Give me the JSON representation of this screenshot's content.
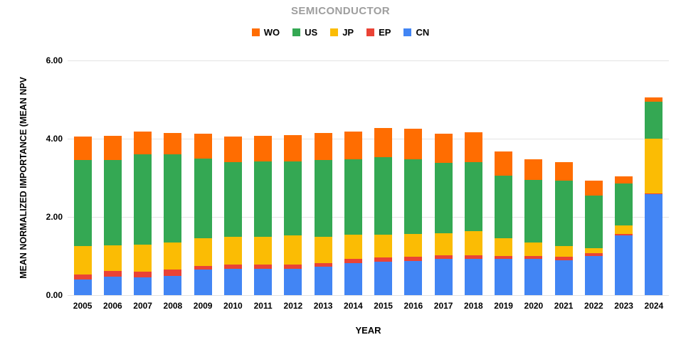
{
  "title": "SEMICONDUCTOR",
  "legend": [
    {
      "label": "WO",
      "color": "#FF6D01"
    },
    {
      "label": "US",
      "color": "#34A853"
    },
    {
      "label": "JP",
      "color": "#FBBC04"
    },
    {
      "label": "EP",
      "color": "#EA4335"
    },
    {
      "label": "CN",
      "color": "#4285F4"
    }
  ],
  "chart_data": {
    "type": "bar",
    "stacked": true,
    "title": "SEMICONDUCTOR",
    "xlabel": "YEAR",
    "ylabel": "MEAN NORMALIZED IMPORTANCE (MEAN NPV",
    "ylim": [
      0,
      6
    ],
    "y_ticks": [
      "0.00",
      "2.00",
      "4.00",
      "6.00"
    ],
    "grid": true,
    "legend_position": "top",
    "legend_order": [
      "WO",
      "US",
      "JP",
      "EP",
      "CN"
    ],
    "stack_order_bottom_to_top": [
      "CN",
      "EP",
      "JP",
      "US",
      "WO"
    ],
    "categories": [
      2005,
      2006,
      2007,
      2008,
      2009,
      2010,
      2011,
      2012,
      2013,
      2014,
      2015,
      2016,
      2017,
      2018,
      2019,
      2020,
      2021,
      2022,
      2023,
      2024
    ],
    "series": [
      {
        "name": "CN",
        "color": "#4285F4",
        "values": [
          0.4,
          0.48,
          0.45,
          0.5,
          0.65,
          0.68,
          0.68,
          0.68,
          0.72,
          0.82,
          0.85,
          0.88,
          0.92,
          0.92,
          0.92,
          0.92,
          0.9,
          1.0,
          1.52,
          2.58
        ]
      },
      {
        "name": "EP",
        "color": "#EA4335",
        "values": [
          0.12,
          0.14,
          0.15,
          0.16,
          0.1,
          0.1,
          0.1,
          0.1,
          0.1,
          0.1,
          0.12,
          0.1,
          0.1,
          0.1,
          0.08,
          0.08,
          0.08,
          0.07,
          0.05,
          0.02
        ]
      },
      {
        "name": "JP",
        "color": "#FBBC04",
        "values": [
          0.73,
          0.66,
          0.7,
          0.69,
          0.7,
          0.72,
          0.72,
          0.74,
          0.68,
          0.62,
          0.58,
          0.58,
          0.57,
          0.62,
          0.45,
          0.35,
          0.28,
          0.13,
          0.22,
          1.4
        ]
      },
      {
        "name": "US",
        "color": "#34A853",
        "values": [
          2.2,
          2.17,
          2.3,
          2.25,
          2.05,
          1.9,
          1.92,
          1.9,
          1.95,
          1.94,
          1.97,
          1.92,
          1.79,
          1.76,
          1.6,
          1.6,
          1.66,
          1.35,
          1.06,
          0.95
        ]
      },
      {
        "name": "WO",
        "color": "#FF6D01",
        "values": [
          0.6,
          0.62,
          0.58,
          0.55,
          0.62,
          0.65,
          0.66,
          0.68,
          0.7,
          0.7,
          0.76,
          0.77,
          0.75,
          0.77,
          0.62,
          0.52,
          0.48,
          0.37,
          0.18,
          0.1
        ]
      }
    ]
  }
}
